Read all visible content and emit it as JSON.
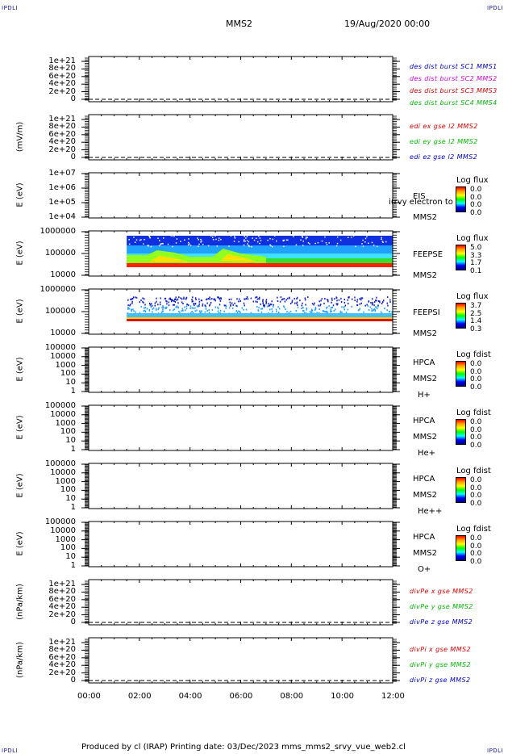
{
  "header": {
    "corner_tl": "IPDLI",
    "corner_tr": "IPDLI",
    "corner_bl": "IPDLI",
    "corner_br": "IPDLI",
    "title": "MMS2",
    "datetime": "19/Aug/2020 00:00"
  },
  "footer": {
    "text": "Produced by cl (IRAP)   Printing date: 03/Dec/2023   mms_mms2_srvy_vue_web2.cl"
  },
  "colors": {
    "red": "#dd0000",
    "green": "#00bb00",
    "blue": "#0000cc",
    "magenta": "#dd00dd"
  },
  "chart_data": [
    {
      "type": "line",
      "ylabel": "",
      "yticks": [
        "1e+21",
        "8e+20",
        "6e+20",
        "4e+20",
        "2e+20",
        "0"
      ],
      "legend": [
        {
          "text": "des dist burst SC1 MMS1",
          "color": "#0000cc"
        },
        {
          "text": "des dist burst SC2 MMS2",
          "color": "#dd00dd"
        },
        {
          "text": "des dist burst SC3 MMS3",
          "color": "#dd0000"
        },
        {
          "text": "des dist burst SC4 MMS4",
          "color": "#00bb00"
        }
      ]
    },
    {
      "type": "line",
      "ylabel": "(mV/m)",
      "yticks": [
        "1e+21",
        "8e+20",
        "6e+20",
        "4e+20",
        "2e+20",
        "0"
      ],
      "legend": [
        {
          "text": "edi ex gse l2 MMS2",
          "color": "#dd0000"
        },
        {
          "text": "edi ey gse l2 MMS2",
          "color": "#00bb00"
        },
        {
          "text": "edi ez gse l2 MMS2",
          "color": "#0000cc"
        }
      ]
    },
    {
      "type": "heatmap",
      "ylabel": "E (eV)",
      "yticks": [
        "1e+07",
        "1e+06",
        "1e+05",
        "1e+04"
      ],
      "right_labels": [
        "EIS",
        "MMS2"
      ],
      "overlay": "i(rvy electron to",
      "colorbar": {
        "title": "Log flux",
        "values": [
          "0.0",
          "0.0",
          "0.0",
          "0.0"
        ]
      }
    },
    {
      "type": "heatmap",
      "ylabel": "E (eV)",
      "yticks": [
        "1000000",
        "100000",
        "10000"
      ],
      "right_labels": [
        "FEEPSE",
        "MMS2"
      ],
      "colorbar": {
        "title": "Log flux",
        "values": [
          "5.0",
          "3.3",
          "1.7",
          "0.1"
        ]
      },
      "data_start_hour": 1.5,
      "data_end_hour": 12.0
    },
    {
      "type": "heatmap",
      "ylabel": "E (eV)",
      "yticks": [
        "1000000",
        "100000",
        "10000"
      ],
      "right_labels": [
        "FEEPSI",
        "MMS2"
      ],
      "colorbar": {
        "title": "Log flux",
        "values": [
          "3.7",
          "2.5",
          "1.4",
          "0.3"
        ]
      },
      "data_start_hour": 1.5,
      "data_end_hour": 12.0
    },
    {
      "type": "heatmap",
      "ylabel": "E (eV)",
      "yticks": [
        "100000",
        "10000",
        "1000",
        "100",
        "10",
        "1"
      ],
      "right_labels": [
        "HPCA",
        "MMS2",
        "H+"
      ],
      "colorbar": {
        "title": "Log fdist",
        "values": [
          "0.0",
          "0.0",
          "0.0",
          "0.0"
        ]
      }
    },
    {
      "type": "heatmap",
      "ylabel": "E (eV)",
      "yticks": [
        "100000",
        "10000",
        "1000",
        "100",
        "10",
        "1"
      ],
      "right_labels": [
        "HPCA",
        "MMS2",
        "He+"
      ],
      "colorbar": {
        "title": "Log fdist",
        "values": [
          "0.0",
          "0.0",
          "0.0",
          "0.0"
        ]
      }
    },
    {
      "type": "heatmap",
      "ylabel": "E (eV)",
      "yticks": [
        "100000",
        "10000",
        "1000",
        "100",
        "10",
        "1"
      ],
      "right_labels": [
        "HPCA",
        "MMS2",
        "He++"
      ],
      "colorbar": {
        "title": "Log fdist",
        "values": [
          "0.0",
          "0.0",
          "0.0",
          "0.0"
        ]
      }
    },
    {
      "type": "heatmap",
      "ylabel": "E (eV)",
      "yticks": [
        "100000",
        "10000",
        "1000",
        "100",
        "10",
        "1"
      ],
      "right_labels": [
        "HPCA",
        "MMS2",
        "O+"
      ],
      "colorbar": {
        "title": "Log fdist",
        "values": [
          "0.0",
          "0.0",
          "0.0",
          "0.0"
        ]
      }
    },
    {
      "type": "line",
      "ylabel": "(nPa/km)",
      "yticks": [
        "1e+21",
        "8e+20",
        "6e+20",
        "4e+20",
        "2e+20",
        "0"
      ],
      "legend": [
        {
          "text": "divPe x gse MMS2",
          "color": "#dd0000"
        },
        {
          "text": "divPe y gse MMS2",
          "color": "#00bb00"
        },
        {
          "text": "divPe z gse MMS2",
          "color": "#0000cc"
        }
      ]
    },
    {
      "type": "line",
      "ylabel": "(nPa/km)",
      "yticks": [
        "1e+21",
        "8e+20",
        "6e+20",
        "4e+20",
        "2e+20",
        "0"
      ],
      "legend": [
        {
          "text": "divPi x gse MMS2",
          "color": "#dd0000"
        },
        {
          "text": "divPi y gse MMS2",
          "color": "#00bb00"
        },
        {
          "text": "divPi z gse MMS2",
          "color": "#0000cc"
        }
      ]
    }
  ],
  "xaxis": {
    "ticks": [
      "00:00",
      "02:00",
      "04:00",
      "06:00",
      "08:00",
      "10:00",
      "12:00"
    ],
    "range_hours": [
      0,
      12
    ]
  }
}
